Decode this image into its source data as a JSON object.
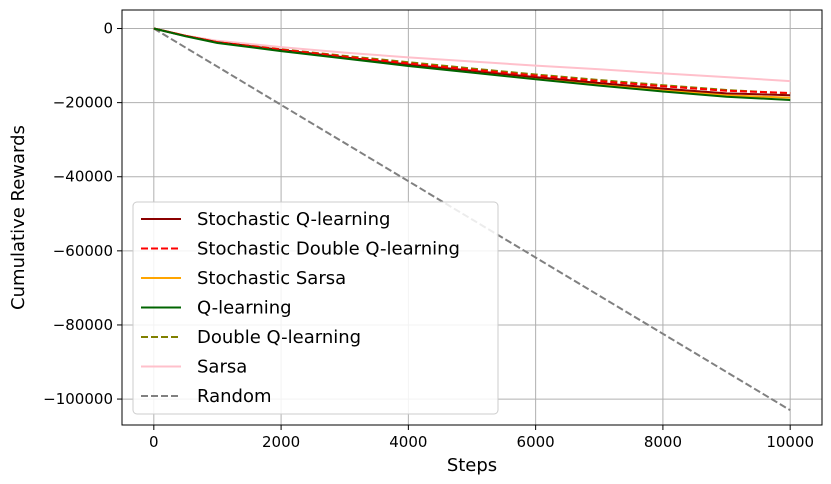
{
  "chart_data": {
    "type": "line",
    "title": "",
    "xlabel": "Steps",
    "ylabel": "Cumulative Rewards",
    "xlim": [
      -500,
      10500
    ],
    "ylim": [
      -107000,
      5000
    ],
    "xticks": [
      0,
      2000,
      4000,
      6000,
      8000,
      10000
    ],
    "yticks": [
      0,
      -20000,
      -40000,
      -60000,
      -80000,
      -100000
    ],
    "xtick_labels": [
      "0",
      "2000",
      "4000",
      "6000",
      "8000",
      "10000"
    ],
    "ytick_labels": [
      "0",
      "−20000",
      "−40000",
      "−60000",
      "−80000",
      "−100000"
    ],
    "grid": true,
    "legend_position": "lower-left",
    "x": [
      0,
      500,
      1000,
      2000,
      3000,
      4000,
      5000,
      6000,
      7000,
      8000,
      9000,
      10000
    ],
    "series": [
      {
        "name": "Stochastic Q-learning",
        "color": "#8b0000",
        "dash": "solid",
        "values": [
          0,
          -2000,
          -3700,
          -5800,
          -7800,
          -9700,
          -11400,
          -13100,
          -14700,
          -16200,
          -17500,
          -18000
        ]
      },
      {
        "name": "Stochastic Double Q-learning",
        "color": "#ff0000",
        "dash": "dashed",
        "values": [
          0,
          -2000,
          -3700,
          -5700,
          -7600,
          -9400,
          -11100,
          -12700,
          -14200,
          -15600,
          -16800,
          -17400
        ]
      },
      {
        "name": "Stochastic Sarsa",
        "color": "#ffa500",
        "dash": "solid",
        "values": [
          0,
          -2000,
          -3700,
          -5800,
          -7800,
          -9800,
          -11600,
          -13300,
          -15000,
          -16600,
          -18000,
          -18700
        ]
      },
      {
        "name": "Q-learning",
        "color": "#006400",
        "dash": "solid",
        "values": [
          0,
          -2100,
          -3900,
          -6100,
          -8100,
          -10100,
          -11900,
          -13700,
          -15400,
          -17000,
          -18400,
          -19300
        ]
      },
      {
        "name": "Double Q-learning",
        "color": "#808000",
        "dash": "dashed",
        "values": [
          0,
          -2000,
          -3700,
          -5600,
          -7400,
          -9100,
          -10800,
          -12400,
          -13900,
          -15300,
          -16600,
          -17500
        ]
      },
      {
        "name": "Sarsa",
        "color": "#ffc0cb",
        "dash": "solid",
        "values": [
          0,
          -1900,
          -3300,
          -5000,
          -6500,
          -7800,
          -8900,
          -10000,
          -11000,
          -12100,
          -13100,
          -14200
        ]
      },
      {
        "name": "Random",
        "color": "#808080",
        "dash": "dashed",
        "values": [
          0,
          -5150,
          -10300,
          -20600,
          -30900,
          -41200,
          -51500,
          -61800,
          -72100,
          -82400,
          -92700,
          -103000
        ]
      }
    ]
  }
}
